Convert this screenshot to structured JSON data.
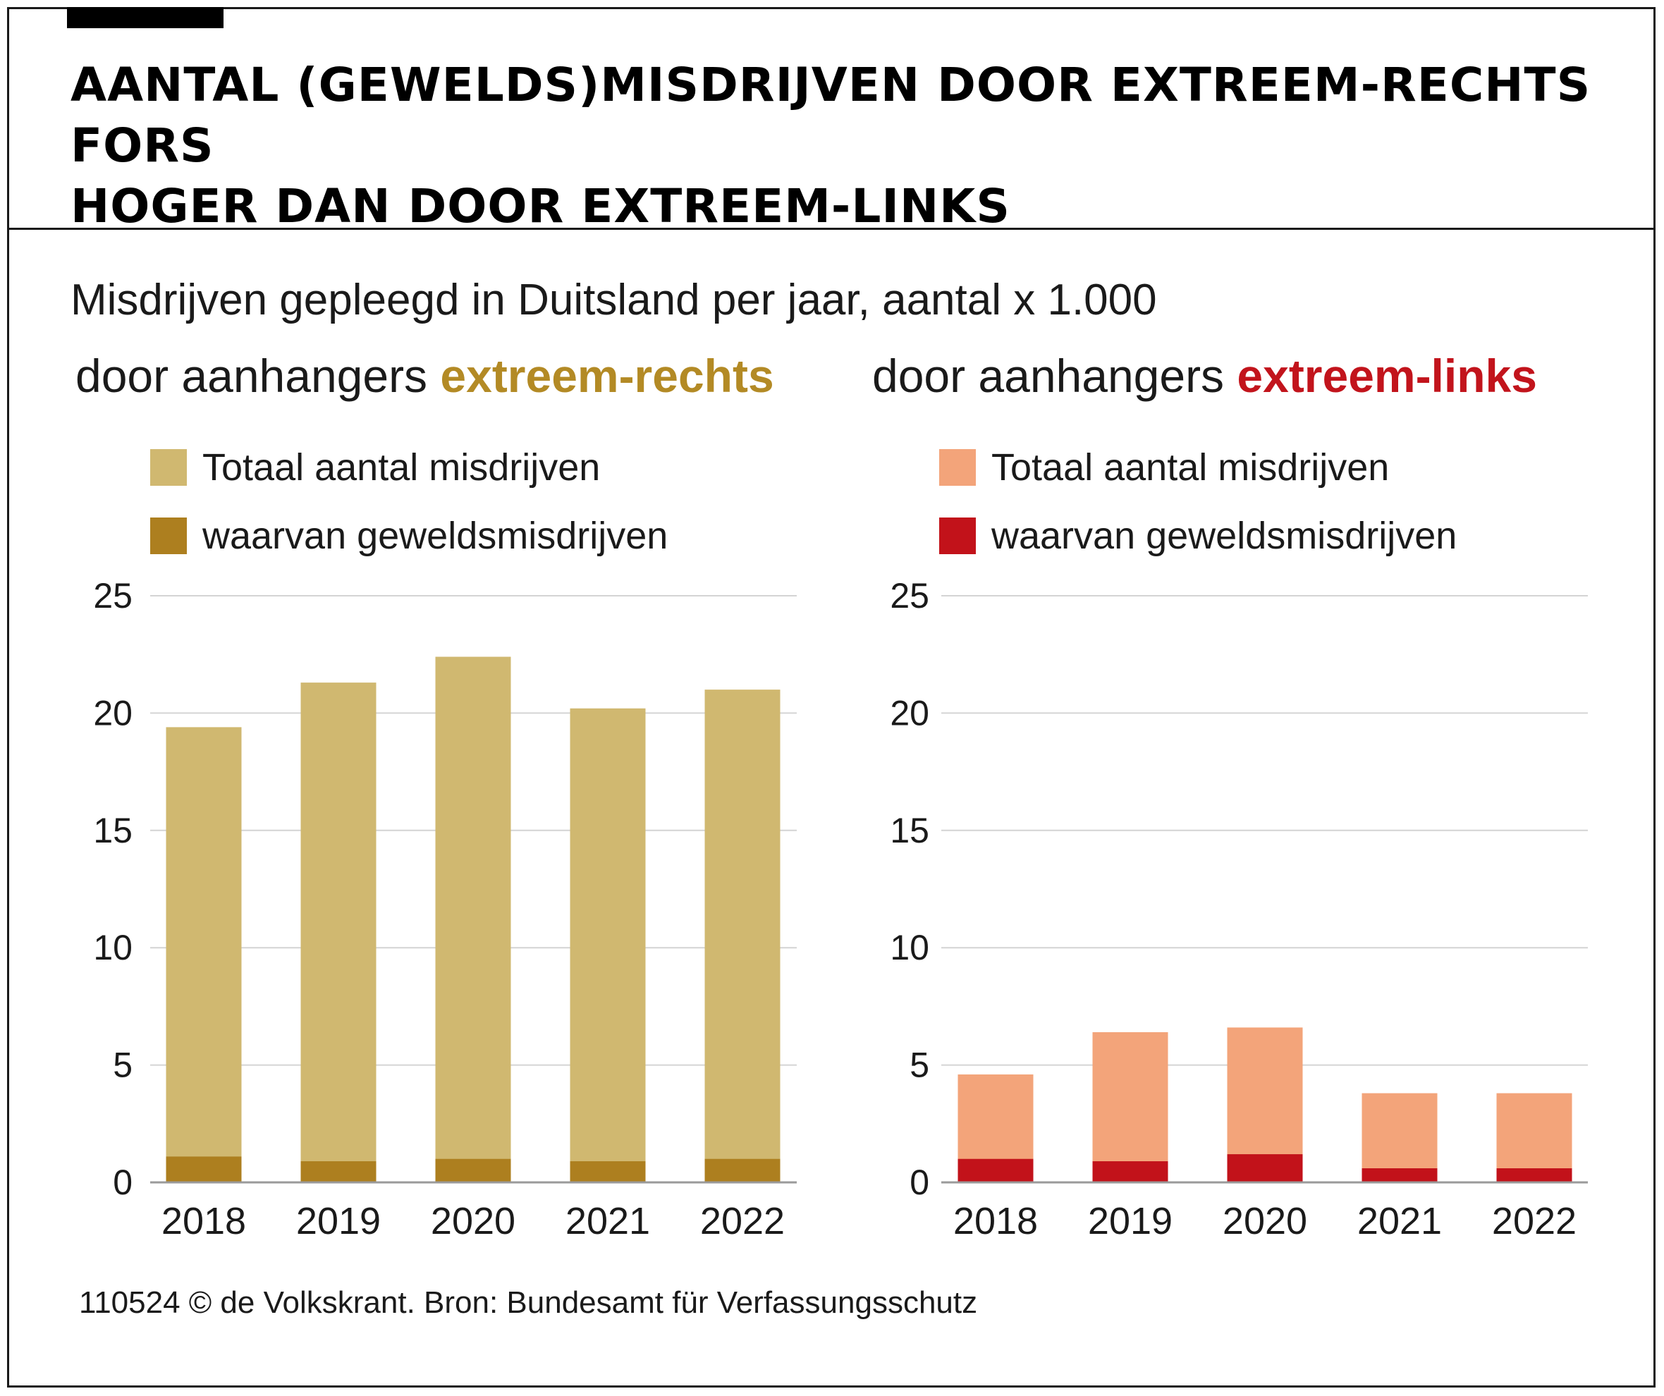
{
  "title": "AANTAL (GEWELDS)MISDRIJVEN DOOR EXTREEM-RECHTS FORS HOGER DAN DOOR EXTREEM-LINKS",
  "subtitle": "Misdrijven gepleegd in Duitsland per jaar, aantal x 1.000",
  "panels": [
    {
      "heading_prefix": "door aanhangers",
      "heading_accent": "extreem-rechts",
      "accent_color": "#b38a25"
    },
    {
      "heading_prefix": "door aanhangers",
      "heading_accent": "extreem-links",
      "accent_color": "#c2141c"
    }
  ],
  "footer": "110524 © de Volkskrant. Bron: Bundesamt für Verfassungsschutz",
  "chart_data": [
    {
      "type": "bar",
      "title": "door aanhangers extreem-rechts",
      "categories": [
        "2018",
        "2019",
        "2020",
        "2021",
        "2022"
      ],
      "ylim": [
        0,
        25
      ],
      "yticks": [
        0,
        5,
        10,
        15,
        20,
        25
      ],
      "grid": true,
      "legend": "top-left",
      "series": [
        {
          "name": "Totaal aantal misdrijven",
          "color": "#d0b870",
          "values": [
            19.4,
            21.3,
            22.4,
            20.2,
            21.0
          ]
        },
        {
          "name": "waarvan geweldsmisdrijven",
          "color": "#ad7f1f",
          "values": [
            1.1,
            0.9,
            1.0,
            0.9,
            1.0
          ]
        }
      ]
    },
    {
      "type": "bar",
      "title": "door aanhangers extreem-links",
      "categories": [
        "2018",
        "2019",
        "2020",
        "2021",
        "2022"
      ],
      "ylim": [
        0,
        25
      ],
      "yticks": [
        0,
        5,
        10,
        15,
        20,
        25
      ],
      "grid": true,
      "legend": "top-left",
      "series": [
        {
          "name": "Totaal aantal misdrijven",
          "color": "#f3a47a",
          "values": [
            4.6,
            6.4,
            6.6,
            3.8,
            3.8
          ]
        },
        {
          "name": "waarvan geweldsmisdrijven",
          "color": "#c2121a",
          "values": [
            1.0,
            0.9,
            1.2,
            0.6,
            0.6
          ]
        }
      ]
    }
  ]
}
